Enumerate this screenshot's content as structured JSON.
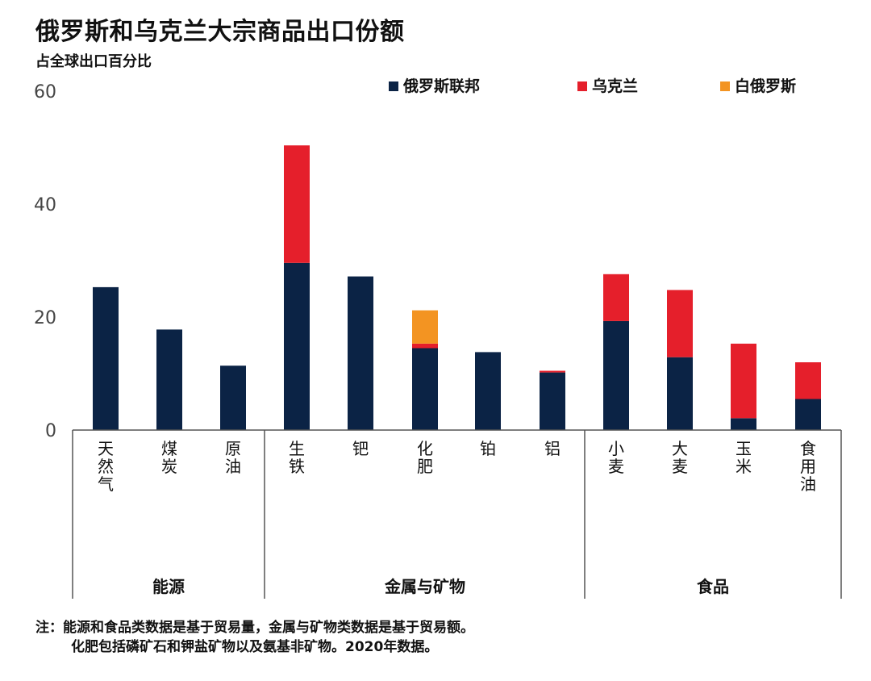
{
  "title": "俄罗斯和乌克兰大宗商品出口份额",
  "subtitle": "占全球出口百分比",
  "notes": {
    "line1": "注：能源和食品类数据是基于贸易量，金属与矿物类数据是基于贸易额。",
    "line2": "化肥包括磷矿石和钾盐矿物以及氨基非矿物。2020年数据。"
  },
  "colors": {
    "russia": "#0b2345",
    "ukraine": "#e51f2b",
    "belarus": "#f39422"
  },
  "chart_data": {
    "type": "bar",
    "stacked": true,
    "categories": [
      "天然气",
      "煤炭",
      "原油",
      "生铁",
      "钯",
      "化肥",
      "铂",
      "铝",
      "小麦",
      "大麦",
      "玉米",
      "食用油"
    ],
    "groups": [
      {
        "label": "能源",
        "categories": [
          "天然气",
          "煤炭",
          "原油"
        ]
      },
      {
        "label": "金属与矿物",
        "categories": [
          "生铁",
          "钯",
          "化肥",
          "铂",
          "铝"
        ]
      },
      {
        "label": "食品",
        "categories": [
          "小麦",
          "大麦",
          "玉米",
          "食用油"
        ]
      }
    ],
    "series": [
      {
        "name": "俄罗斯联邦",
        "color": "#0b2345",
        "values": [
          25.3,
          17.8,
          11.4,
          29.6,
          27.2,
          14.5,
          13.8,
          10.2,
          19.3,
          12.9,
          2.1,
          5.5
        ]
      },
      {
        "name": "乌克兰",
        "color": "#e51f2b",
        "values": [
          0,
          0,
          0,
          20.8,
          0,
          0.8,
          0,
          0.3,
          8.3,
          11.9,
          13.2,
          6.5
        ]
      },
      {
        "name": "白俄罗斯",
        "color": "#f39422",
        "values": [
          0,
          0,
          0,
          0,
          0,
          5.9,
          0,
          0,
          0,
          0,
          0,
          0
        ]
      }
    ],
    "yticks": [
      "0",
      "20",
      "40",
      "60"
    ],
    "ylim": [
      0,
      60
    ],
    "legend_position": "top"
  }
}
